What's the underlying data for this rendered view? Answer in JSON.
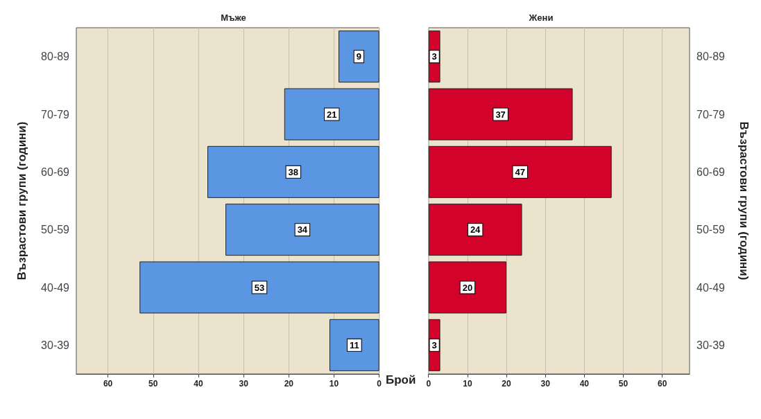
{
  "chart_data": [
    {
      "type": "bar",
      "orientation": "horizontal",
      "title": "Мъже",
      "ylabel": "Възрастови групи (години)",
      "categories": [
        "80-89",
        "70-79",
        "60-69",
        "50-59",
        "40-49",
        "30-39"
      ],
      "values": [
        9,
        21,
        38,
        34,
        53,
        11
      ],
      "color": "#5b96e2",
      "xlim": [
        67,
        0
      ],
      "xticks": [
        60,
        50,
        40,
        30,
        20,
        10,
        0
      ],
      "data_labels": true,
      "grid": "x"
    },
    {
      "type": "bar",
      "orientation": "horizontal",
      "title": "Жени",
      "xlabel": "Брой",
      "y2label": "Възрастови групи (години)",
      "categories": [
        "80-89",
        "70-79",
        "60-69",
        "50-59",
        "40-49",
        "30-39"
      ],
      "values": [
        3,
        37,
        47,
        24,
        20,
        3
      ],
      "color": "#d2022a",
      "xlim": [
        0,
        67
      ],
      "xticks": [
        0,
        10,
        20,
        30,
        40,
        50,
        60
      ],
      "data_labels": true,
      "grid": "x"
    }
  ]
}
